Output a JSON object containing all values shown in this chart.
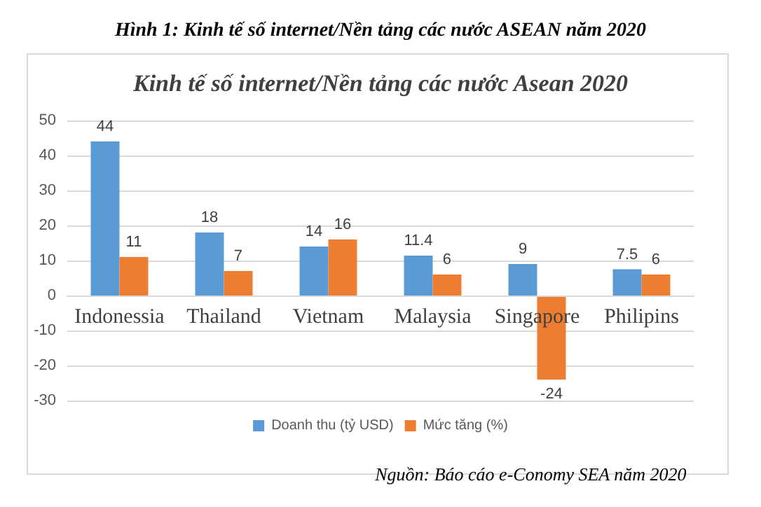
{
  "chart_data": {
    "type": "bar",
    "title": "Hình 1: Kinh tế số internet/Nền tảng các nước ASEAN năm 2020",
    "subtitle": "Kinh tế số internet/Nền tảng các nước Asean 2020",
    "categories": [
      "Indonessia",
      "Thailand",
      "Vietnam",
      "Malaysia",
      "Singapore",
      "Philipins"
    ],
    "series": [
      {
        "name": "Doanh thu (tỷ USD)",
        "color": "#5b9bd5",
        "values": [
          44,
          18,
          14,
          11.4,
          9,
          7.5
        ]
      },
      {
        "name": "Mức tăng (%)",
        "color": "#ed7d31",
        "values": [
          11,
          7,
          16,
          6,
          -24,
          6
        ]
      }
    ],
    "ylim": [
      -30,
      50
    ],
    "yticks": [
      -30,
      -20,
      -10,
      0,
      10,
      20,
      30,
      40,
      50
    ],
    "grid": "y",
    "legend": "bottom",
    "data_labels": true,
    "annotations": [
      "Nguồn: Báo cáo e-Conomy SEA năm 2020"
    ]
  }
}
